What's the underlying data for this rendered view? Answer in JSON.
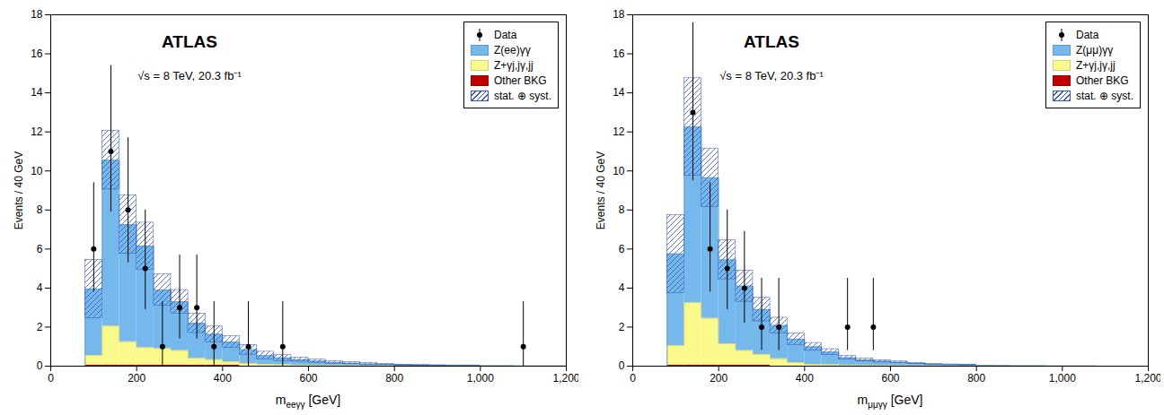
{
  "chart_data": [
    {
      "type": "histogram",
      "annotations": [
        "ATLAS",
        "√s = 8 TeV, 20.3 fb⁻¹"
      ],
      "xlabel": "meeγγ [GeV]",
      "ylabel": "Events / 40 GeV",
      "bins": [
        0,
        40,
        80,
        120,
        160,
        200,
        240,
        280,
        320,
        360,
        400,
        440,
        480,
        520,
        560,
        600,
        640,
        680,
        720,
        760,
        800,
        840,
        880,
        920,
        960,
        1000,
        1040,
        1080,
        1120,
        1160,
        1200
      ],
      "stacked": true,
      "legend": "upper right",
      "grid": false,
      "xlim": [
        0,
        1200
      ],
      "xticks": [
        0,
        200,
        400,
        600,
        800,
        1000,
        1200
      ],
      "ylim": [
        0,
        18
      ],
      "yticks": [
        0,
        2,
        4,
        6,
        8,
        10,
        12,
        14,
        16,
        18
      ],
      "series": [
        {
          "name": "Data",
          "type": "scatter",
          "marker": "o",
          "color": "black",
          "x": [
            100,
            140,
            180,
            220,
            260,
            300,
            340,
            380,
            460,
            540,
            1100
          ],
          "values": [
            6,
            11,
            8,
            5,
            1,
            3,
            3,
            1,
            1,
            1,
            1
          ],
          "yerr_lo": [
            2.2,
            3.1,
            2.7,
            2.1,
            1.0,
            1.6,
            1.6,
            1.0,
            1.0,
            1.0,
            1.0
          ],
          "yerr_hi": [
            3.4,
            4.4,
            3.7,
            3.0,
            2.3,
            2.7,
            2.7,
            2.3,
            2.3,
            2.3,
            2.3
          ]
        },
        {
          "name": "Z(ee)γγ",
          "type": "step",
          "color": "#74B8EC",
          "values": [
            0,
            0,
            3.4,
            8.5,
            6.0,
            5.2,
            3.0,
            2.5,
            1.8,
            1.3,
            1.0,
            0.7,
            0.45,
            0.35,
            0.28,
            0.22,
            0.16,
            0.13,
            0.1,
            0.08,
            0.06,
            0.05,
            0.04,
            0.03,
            0.03,
            0.02,
            0.02,
            0.01,
            0.01,
            0.01
          ]
        },
        {
          "name": "Z+γj,jγ,jj",
          "type": "step",
          "color": "#FAFA8C",
          "values": [
            0,
            0,
            0.5,
            2.0,
            1.2,
            0.9,
            0.85,
            0.75,
            0.35,
            0.28,
            0.18,
            0.14,
            0.09,
            0.07,
            0.05,
            0.04,
            0.03,
            0.02,
            0.01,
            0.01,
            0.0,
            0.0,
            0.0,
            0.0,
            0.0,
            0.0,
            0.0,
            0.0,
            0.0,
            0.0
          ]
        },
        {
          "name": "Other BKG",
          "type": "step",
          "color": "#C00000",
          "values": [
            0,
            0,
            0.05,
            0.05,
            0.05,
            0.05,
            0.05,
            0.05,
            0.05,
            0.05,
            0.05,
            0.0,
            0.0,
            0.0,
            0.0,
            0.0,
            0.0,
            0.0,
            0.0,
            0.0,
            0.0,
            0.0,
            0.0,
            0.0,
            0.0,
            0.0,
            0.0,
            0.0,
            0.0,
            0.0
          ]
        },
        {
          "name": "stat. ⊕ syst.",
          "type": "band",
          "color": "#3355BB",
          "syst_up": [
            0,
            0,
            1.5,
            1.5,
            1.5,
            1.2,
            0.8,
            0.6,
            0.5,
            0.4,
            0.3,
            0.25,
            0.2,
            0.15,
            0.1,
            0.08,
            0.06,
            0.05,
            0.04,
            0.03,
            0.02,
            0.02,
            0.01,
            0.01,
            0.01,
            0.0,
            0.0,
            0.0,
            0.0,
            0.0
          ],
          "syst_dn": [
            0,
            0,
            1.5,
            1.5,
            1.5,
            1.2,
            0.8,
            0.6,
            0.5,
            0.4,
            0.3,
            0.25,
            0.2,
            0.15,
            0.1,
            0.08,
            0.06,
            0.05,
            0.04,
            0.03,
            0.02,
            0.02,
            0.01,
            0.01,
            0.01,
            0.0,
            0.0,
            0.0,
            0.0,
            0.0
          ]
        }
      ]
    },
    {
      "type": "histogram",
      "annotations": [
        "ATLAS",
        "√s = 8 TeV, 20.3 fb⁻¹"
      ],
      "xlabel": "mμμγγ [GeV]",
      "ylabel": "Events / 40 GeV",
      "bins": [
        0,
        40,
        80,
        120,
        160,
        200,
        240,
        280,
        320,
        360,
        400,
        440,
        480,
        520,
        560,
        600,
        640,
        680,
        720,
        760,
        800,
        840,
        880,
        920,
        960,
        1000,
        1040,
        1080,
        1120,
        1160,
        1200
      ],
      "stacked": true,
      "legend": "upper right",
      "grid": false,
      "xlim": [
        0,
        1200
      ],
      "xticks": [
        0,
        200,
        400,
        600,
        800,
        1000,
        1200
      ],
      "ylim": [
        0,
        18
      ],
      "yticks": [
        0,
        2,
        4,
        6,
        8,
        10,
        12,
        14,
        16,
        18
      ],
      "series": [
        {
          "name": "Data",
          "type": "scatter",
          "marker": "o",
          "color": "black",
          "x": [
            140,
            180,
            220,
            260,
            300,
            340,
            500,
            560
          ],
          "values": [
            13,
            6,
            5,
            4,
            2,
            2,
            2,
            2
          ],
          "yerr_lo": [
            3.5,
            2.2,
            2.1,
            1.8,
            1.2,
            1.2,
            1.2,
            1.2
          ],
          "yerr_hi": [
            4.6,
            3.4,
            3.0,
            2.9,
            2.5,
            2.5,
            2.5,
            2.5
          ]
        },
        {
          "name": "Z(μμ)γγ",
          "type": "step",
          "color": "#74B8EC",
          "values": [
            0,
            0,
            4.7,
            9.0,
            7.2,
            4.3,
            3.3,
            2.3,
            1.7,
            1.2,
            0.9,
            0.65,
            0.38,
            0.28,
            0.22,
            0.18,
            0.13,
            0.09,
            0.08,
            0.06,
            0.04,
            0.03,
            0.02,
            0.02,
            0.01,
            0.01,
            0.01,
            0.0,
            0.0,
            0.0
          ]
        },
        {
          "name": "Z+γj,jγ,jj",
          "type": "step",
          "color": "#FAFA8C",
          "values": [
            0,
            0,
            1.0,
            3.2,
            2.4,
            1.1,
            0.75,
            0.55,
            0.38,
            0.18,
            0.09,
            0.07,
            0.05,
            0.04,
            0.03,
            0.02,
            0.01,
            0.01,
            0.0,
            0.0,
            0.0,
            0.0,
            0.0,
            0.0,
            0.0,
            0.0,
            0.0,
            0.0,
            0.0,
            0.0
          ]
        },
        {
          "name": "Other BKG",
          "type": "step",
          "color": "#C00000",
          "values": [
            0,
            0,
            0.05,
            0.05,
            0.05,
            0.05,
            0.05,
            0.05,
            0.0,
            0.0,
            0.0,
            0.0,
            0.0,
            0.0,
            0.0,
            0.0,
            0.0,
            0.0,
            0.0,
            0.0,
            0.0,
            0.0,
            0.0,
            0.0,
            0.0,
            0.0,
            0.0,
            0.0,
            0.0,
            0.0
          ]
        },
        {
          "name": "stat. ⊕ syst.",
          "type": "band",
          "color": "#3355BB",
          "syst_up": [
            0,
            0,
            2.0,
            2.5,
            1.5,
            1.0,
            0.8,
            0.6,
            0.4,
            0.3,
            0.2,
            0.15,
            0.1,
            0.08,
            0.06,
            0.04,
            0.03,
            0.02,
            0.01,
            0.01,
            0.0,
            0.0,
            0.0,
            0.0,
            0.0,
            0.0,
            0.0,
            0.0,
            0.0,
            0.0
          ],
          "syst_dn": [
            0,
            0,
            2.0,
            2.5,
            1.5,
            1.0,
            0.8,
            0.6,
            0.4,
            0.3,
            0.2,
            0.15,
            0.1,
            0.08,
            0.06,
            0.04,
            0.03,
            0.02,
            0.01,
            0.01,
            0.0,
            0.0,
            0.0,
            0.0,
            0.0,
            0.0,
            0.0,
            0.0,
            0.0,
            0.0
          ]
        }
      ]
    }
  ]
}
